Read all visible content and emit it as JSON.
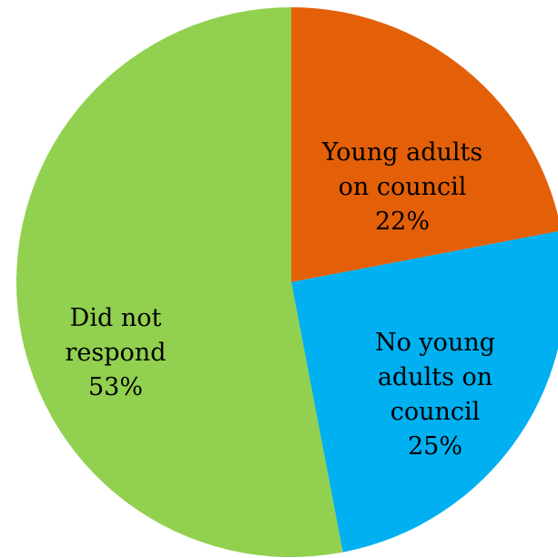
{
  "chart_data": {
    "type": "pie",
    "slices": [
      {
        "name": "Young adults on council",
        "value": 22,
        "label_lines": [
          "Young adults",
          "on council",
          "22%"
        ],
        "color": "#E36009"
      },
      {
        "name": "No young adults on council",
        "value": 25,
        "label_lines": [
          "No young",
          "adults on",
          "council",
          "25%"
        ],
        "color": "#00B0F0"
      },
      {
        "name": "Did not respond",
        "value": 53,
        "label_lines": [
          "Did not",
          "respond",
          "53%"
        ],
        "color": "#92D050"
      }
    ],
    "start_angle_deg": 0,
    "direction": "clockwise",
    "legend": "none",
    "data_labels": "inside"
  }
}
